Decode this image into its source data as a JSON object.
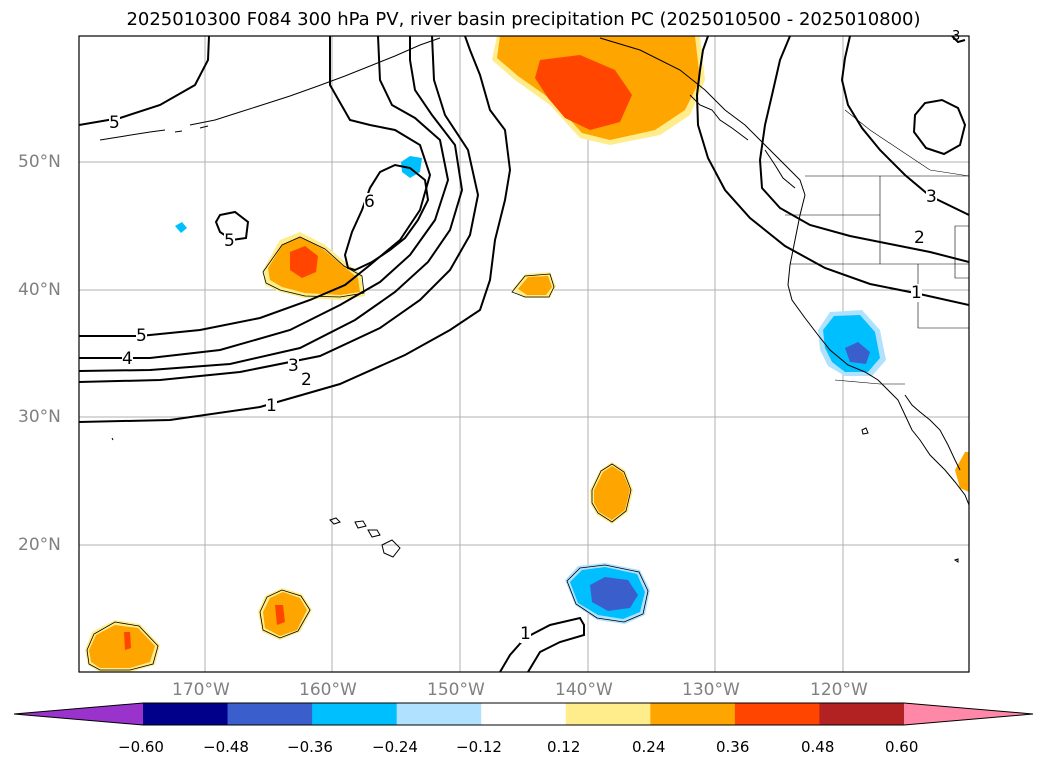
{
  "title": "2025010300 F084 300 hPa PV, river basin precipitation PC (2025010500 - 2025010800)",
  "map": {
    "lat_labels": [
      "50°N",
      "40°N",
      "30°N",
      "20°N"
    ],
    "lon_labels": [
      "170°W",
      "160°W",
      "150°W",
      "140°W",
      "130°W",
      "120°W"
    ],
    "contour_labels": [
      {
        "id": "c5a",
        "text": "5"
      },
      {
        "id": "c5b",
        "text": "5"
      },
      {
        "id": "c5c",
        "text": "5"
      },
      {
        "id": "c4",
        "text": "4"
      },
      {
        "id": "c3a",
        "text": "3"
      },
      {
        "id": "c2a",
        "text": "2"
      },
      {
        "id": "c1a",
        "text": "1"
      },
      {
        "id": "c6",
        "text": "6"
      },
      {
        "id": "c3b",
        "text": "3"
      },
      {
        "id": "c2b",
        "text": "2"
      },
      {
        "id": "c1b",
        "text": "1"
      },
      {
        "id": "c1c",
        "text": "1"
      },
      {
        "id": "c3c",
        "text": "3"
      }
    ]
  },
  "colorbar": {
    "ticks": [
      "−0.60",
      "−0.48",
      "−0.36",
      "−0.24",
      "−0.12",
      "0.12",
      "0.24",
      "0.36",
      "0.48",
      "0.60"
    ],
    "colors": [
      "#9933cc",
      "#00008b",
      "#3a5fcd",
      "#00bfff",
      "#b0e2ff",
      "#ffffff",
      "#ffec8b",
      "#ffa500",
      "#ff4500",
      "#b22222",
      "#ff88a8"
    ]
  }
}
